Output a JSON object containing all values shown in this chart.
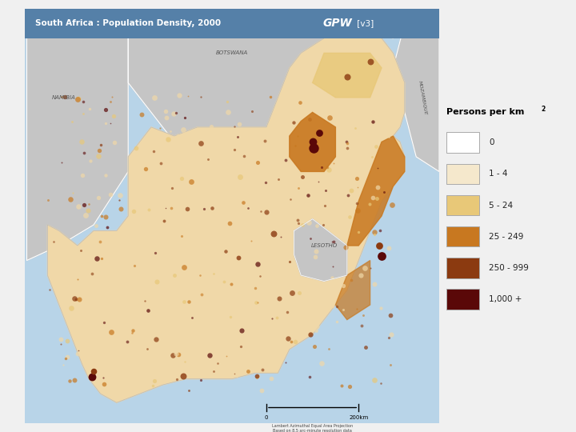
{
  "title_left": "South Africa : Population Density, 2000",
  "title_right_bold": "GPW",
  "title_right_normal": " [v3]",
  "background_color": "#f0f0f0",
  "ocean_color": "#b8d4e8",
  "header_color": "#5580a8",
  "header_text_color": "#ffffff",
  "neighbor_color": "#c5c5c5",
  "neighbor_border_color": "#ffffff",
  "sa_fill_color": "#f0d8a8",
  "legend_bg": "#ffffff",
  "legend_title": "Persons per km",
  "legend_superscript": "2",
  "legend_entries": [
    {
      "label": "0",
      "color": "#ffffff",
      "edge": "#aaaaaa"
    },
    {
      "label": "1 - 4",
      "color": "#f5e8cc",
      "edge": "#aaaaaa"
    },
    {
      "label": "5 - 24",
      "color": "#e8c878",
      "edge": "#aaaaaa"
    },
    {
      "label": "25 - 249",
      "color": "#c87820",
      "edge": "#aaaaaa"
    },
    {
      "label": "250 - 999",
      "color": "#8b3a10",
      "edge": "#aaaaaa"
    },
    {
      "label": "1,000 +",
      "color": "#5a0808",
      "edge": "#aaaaaa"
    }
  ],
  "projection_text": "Lambert Azimuthal Equal Area Projection\nBased on 8.5 arc-minute resolution data",
  "scalebar_label": "200km",
  "country_labels": [
    {
      "name": "BOTSWANA",
      "lon": 24.5,
      "lat": -23.0
    },
    {
      "name": "NAMIBIA",
      "lon": 17.2,
      "lat": -24.5
    },
    {
      "name": "LESOTHO",
      "lon": 28.5,
      "lat": -29.5
    }
  ],
  "mozambique_label_lon": 32.8,
  "mozambique_label_lat": -24.5,
  "lon_min": 15.5,
  "lon_max": 33.5,
  "lat_min": -35.5,
  "lat_max": -21.5
}
